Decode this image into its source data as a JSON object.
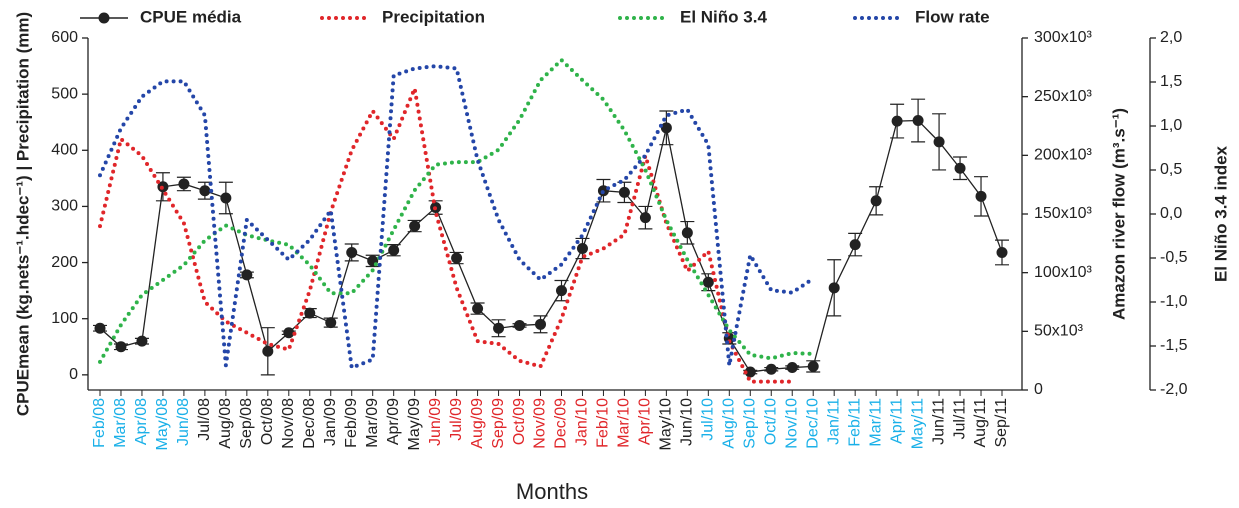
{
  "chart_data": {
    "type": "line",
    "x_label": "Months",
    "y_label": "CPUEmean (kg.nets⁻¹.hdec⁻¹) | Precipitation (mm)",
    "y2_label": "Amazon river flow (m³.s⁻¹)",
    "y3_label": "El Niño 3.4 index",
    "categories": [
      "Feb/08",
      "Mar/08",
      "Apr/08",
      "May/08",
      "Jun/08",
      "Jul/08",
      "Aug/08",
      "Sep/08",
      "Oct/08",
      "Nov/08",
      "Dec/08",
      "Jan/09",
      "Feb/09",
      "Mar/09",
      "Apr/09",
      "May/09",
      "Jun/09",
      "Jul/09",
      "Aug/09",
      "Sep/09",
      "Oct/09",
      "Nov/09",
      "Dec/09",
      "Jan/10",
      "Feb/10",
      "Mar/10",
      "Apr/10",
      "May/10",
      "Jun/10",
      "Jul/10",
      "Aug/10",
      "Sep/10",
      "Oct/10",
      "Nov/10",
      "Dec/10",
      "Jan/11",
      "Feb/11",
      "Mar/11",
      "Apr/11",
      "May/11",
      "Jun/11",
      "Jul/11",
      "Aug/11",
      "Sep/11"
    ],
    "category_colors": [
      "#1ab0e8",
      "#1ab0e8",
      "#1ab0e8",
      "#1ab0e8",
      "#1ab0e8",
      "#222222",
      "#222222",
      "#222222",
      "#222222",
      "#222222",
      "#222222",
      "#222222",
      "#222222",
      "#222222",
      "#222222",
      "#222222",
      "#e0262a",
      "#e0262a",
      "#e0262a",
      "#e0262a",
      "#e0262a",
      "#e0262a",
      "#e0262a",
      "#e0262a",
      "#e0262a",
      "#e0262a",
      "#e0262a",
      "#222222",
      "#222222",
      "#1ab0e8",
      "#1ab0e8",
      "#1ab0e8",
      "#1ab0e8",
      "#1ab0e8",
      "#1ab0e8",
      "#1ab0e8",
      "#1ab0e8",
      "#1ab0e8",
      "#1ab0e8",
      "#1ab0e8",
      "#222222",
      "#222222",
      "#222222",
      "#222222"
    ],
    "ylim": [
      -27,
      600
    ],
    "yticks": [
      0,
      100,
      200,
      300,
      400,
      500,
      600
    ],
    "y2lim": [
      0,
      300000
    ],
    "y2ticks": [
      0,
      {
        "value": 50000,
        "label": "50x10³"
      },
      {
        "value": 100000,
        "label": "100x10³"
      },
      {
        "value": 150000,
        "label": "150x10³"
      },
      {
        "value": 200000,
        "label": "200x10³"
      },
      {
        "value": 250000,
        "label": "250x10³"
      },
      {
        "value": 300000,
        "label": "300x10³"
      }
    ],
    "y3lim": [
      -2,
      2
    ],
    "y3ticks": [
      {
        "value": -2,
        "label": "-2,0"
      },
      {
        "value": -1.5,
        "label": "-1,5"
      },
      {
        "value": -1,
        "label": "-1,0"
      },
      {
        "value": -0.5,
        "label": "-0,5"
      },
      {
        "value": 0,
        "label": "0,0"
      },
      {
        "value": 0.5,
        "label": "0,5"
      },
      {
        "value": 1,
        "label": "1,0"
      },
      {
        "value": 1.5,
        "label": "1,5"
      },
      {
        "value": 2,
        "label": "2,0"
      }
    ],
    "series": [
      {
        "name": "CPUE média",
        "color": "#222222",
        "style": "solid",
        "values": [
          83,
          50,
          60,
          335,
          340,
          328,
          315,
          178,
          42,
          75,
          110,
          93,
          218,
          203,
          222,
          265,
          298,
          208,
          118,
          83,
          88,
          90,
          150,
          225,
          328,
          325,
          280,
          440,
          253,
          165,
          65,
          5,
          10,
          13,
          15,
          155,
          232,
          310,
          452,
          453,
          415,
          368,
          318,
          218
        ],
        "errors": [
          5,
          5,
          5,
          25,
          12,
          15,
          28,
          5,
          42,
          3,
          8,
          8,
          15,
          10,
          10,
          10,
          12,
          10,
          10,
          15,
          3,
          15,
          18,
          18,
          20,
          18,
          20,
          30,
          20,
          15,
          10,
          3,
          3,
          3,
          10,
          50,
          20,
          25,
          30,
          38,
          50,
          20,
          35,
          22
        ]
      },
      {
        "name": "Precipitation",
        "color": "#e0262a",
        "style": "dotted",
        "values": [
          265,
          420,
          390,
          330,
          270,
          130,
          95,
          75,
          55,
          45,
          150,
          290,
          400,
          470,
          420,
          510,
          290,
          155,
          60,
          55,
          25,
          15,
          100,
          210,
          225,
          250,
          390,
          270,
          185,
          220,
          60,
          -12,
          -12,
          -12,
          null,
          null,
          null,
          null,
          null,
          null,
          null,
          null,
          null,
          null
        ]
      },
      {
        "name": "El Niño 3.4",
        "color": "#2fb34a",
        "style": "dotted",
        "axis": "y3",
        "values": [
          -1.68,
          -1.26,
          -0.92,
          -0.75,
          -0.58,
          -0.3,
          -0.13,
          -0.24,
          -0.3,
          -0.35,
          -0.58,
          -0.9,
          -0.9,
          -0.64,
          -0.18,
          0.27,
          0.56,
          0.59,
          0.59,
          0.73,
          1.07,
          1.52,
          1.75,
          1.52,
          1.3,
          0.95,
          0.5,
          -0.07,
          -0.52,
          -0.92,
          -1.32,
          -1.6,
          -1.64,
          -1.58,
          -1.59,
          null,
          null,
          null,
          null,
          null,
          null,
          null,
          null,
          null
        ]
      },
      {
        "name": "Flow rate",
        "color": "#2446a8",
        "style": "dotted",
        "axis": "y2",
        "values": [
          183000,
          223000,
          250000,
          263000,
          263000,
          234000,
          21000,
          145000,
          128000,
          111000,
          128000,
          153000,
          19000,
          26000,
          268000,
          274000,
          276000,
          274000,
          196000,
          145000,
          111000,
          94000,
          107000,
          132000,
          170000,
          179000,
          200000,
          234000,
          239000,
          209000,
          21000,
          115000,
          85000,
          83000,
          95000,
          null,
          null,
          null,
          null,
          null,
          null,
          null,
          null,
          null
        ]
      }
    ]
  }
}
